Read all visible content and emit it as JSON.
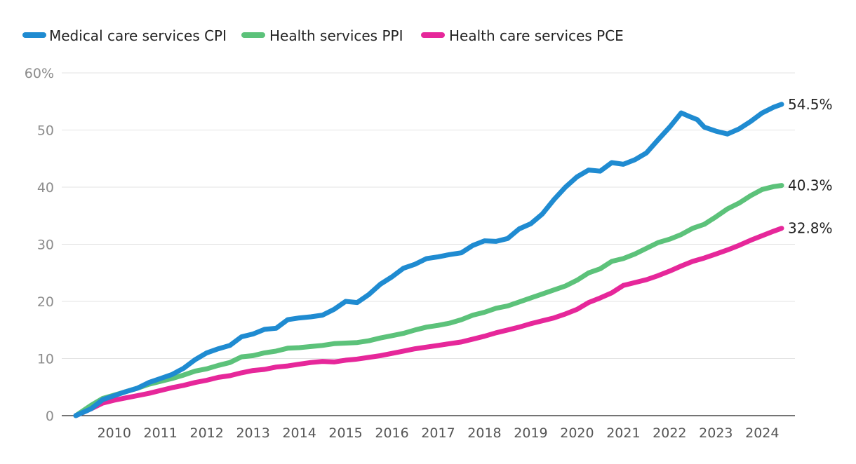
{
  "chart_data": {
    "type": "line",
    "title": "",
    "xlabel": "",
    "ylabel": "",
    "ylim": [
      0,
      60
    ],
    "xlim": [
      2009.42,
      2024.67
    ],
    "yticks": [
      {
        "value": 0,
        "label": "0"
      },
      {
        "value": 10,
        "label": "10"
      },
      {
        "value": 20,
        "label": "20"
      },
      {
        "value": 30,
        "label": "30"
      },
      {
        "value": 40,
        "label": "40"
      },
      {
        "value": 50,
        "label": "50"
      },
      {
        "value": 60,
        "label": "60%"
      }
    ],
    "xticks": [
      {
        "value": 2010,
        "label": "2010"
      },
      {
        "value": 2011,
        "label": "2011"
      },
      {
        "value": 2012,
        "label": "2012"
      },
      {
        "value": 2013,
        "label": "2013"
      },
      {
        "value": 2014,
        "label": "2014"
      },
      {
        "value": 2015,
        "label": "2015"
      },
      {
        "value": 2016,
        "label": "2016"
      },
      {
        "value": 2017,
        "label": "2017"
      },
      {
        "value": 2018,
        "label": "2018"
      },
      {
        "value": 2019,
        "label": "2019"
      },
      {
        "value": 2020,
        "label": "2020"
      },
      {
        "value": 2021,
        "label": "2021"
      },
      {
        "value": 2022,
        "label": "2022"
      },
      {
        "value": 2023,
        "label": "2023"
      },
      {
        "value": 2024,
        "label": "2024"
      }
    ],
    "grid": true,
    "legend_position": "top-left",
    "series": [
      {
        "name": "Medical care services CPI",
        "color": "#1f8bd1",
        "end_label": "54.5%",
        "x": [
          2009.42,
          2009.75,
          2010.0,
          2010.25,
          2010.5,
          2010.75,
          2011.0,
          2011.25,
          2011.5,
          2011.75,
          2012.0,
          2012.25,
          2012.5,
          2012.75,
          2013.0,
          2013.25,
          2013.5,
          2013.75,
          2014.0,
          2014.25,
          2014.5,
          2014.75,
          2015.0,
          2015.25,
          2015.5,
          2015.75,
          2016.0,
          2016.25,
          2016.5,
          2016.75,
          2017.0,
          2017.25,
          2017.5,
          2017.75,
          2018.0,
          2018.25,
          2018.5,
          2018.75,
          2019.0,
          2019.25,
          2019.5,
          2019.75,
          2020.0,
          2020.25,
          2020.5,
          2020.75,
          2021.0,
          2021.25,
          2021.5,
          2021.75,
          2022.0,
          2022.25,
          2022.5,
          2022.7,
          2022.85,
          2023.0,
          2023.25,
          2023.5,
          2023.75,
          2024.0,
          2024.25,
          2024.5,
          2024.67
        ],
        "values": [
          0,
          1.2,
          2.8,
          3.5,
          4.2,
          4.8,
          5.8,
          6.5,
          7.2,
          8.3,
          9.8,
          11.0,
          11.7,
          12.3,
          13.8,
          14.3,
          15.1,
          15.3,
          16.8,
          17.1,
          17.3,
          17.6,
          18.6,
          20.0,
          19.8,
          21.2,
          23.0,
          24.3,
          25.8,
          26.5,
          27.5,
          27.8,
          28.2,
          28.5,
          29.8,
          30.6,
          30.5,
          31.0,
          32.7,
          33.6,
          35.3,
          37.8,
          40.0,
          41.8,
          43.0,
          42.8,
          44.3,
          44.0,
          44.8,
          46.0,
          48.3,
          50.5,
          53.0,
          52.3,
          51.8,
          50.5,
          49.8,
          49.3,
          50.2,
          51.5,
          53.0,
          54.0,
          54.5
        ]
      },
      {
        "name": "Health services PPI",
        "color": "#5cc27a",
        "end_label": "40.3%",
        "x": [
          2009.42,
          2009.75,
          2010.0,
          2010.25,
          2010.5,
          2010.75,
          2011.0,
          2011.25,
          2011.5,
          2011.75,
          2012.0,
          2012.25,
          2012.5,
          2012.75,
          2013.0,
          2013.25,
          2013.5,
          2013.75,
          2014.0,
          2014.25,
          2014.5,
          2014.75,
          2015.0,
          2015.25,
          2015.5,
          2015.75,
          2016.0,
          2016.25,
          2016.5,
          2016.75,
          2017.0,
          2017.25,
          2017.5,
          2017.75,
          2018.0,
          2018.25,
          2018.5,
          2018.75,
          2019.0,
          2019.25,
          2019.5,
          2019.75,
          2020.0,
          2020.25,
          2020.5,
          2020.75,
          2021.0,
          2021.25,
          2021.5,
          2021.75,
          2022.0,
          2022.25,
          2022.5,
          2022.75,
          2023.0,
          2023.25,
          2023.5,
          2023.75,
          2024.0,
          2024.25,
          2024.5,
          2024.67
        ],
        "values": [
          0,
          1.8,
          3.0,
          3.6,
          4.2,
          4.8,
          5.5,
          6.0,
          6.5,
          7.1,
          7.8,
          8.2,
          8.8,
          9.3,
          10.3,
          10.5,
          11.0,
          11.3,
          11.8,
          11.9,
          12.1,
          12.3,
          12.6,
          12.7,
          12.8,
          13.1,
          13.6,
          14.0,
          14.4,
          15.0,
          15.5,
          15.8,
          16.2,
          16.8,
          17.6,
          18.1,
          18.8,
          19.2,
          19.9,
          20.6,
          21.3,
          22.0,
          22.7,
          23.7,
          25.0,
          25.7,
          27.0,
          27.5,
          28.3,
          29.3,
          30.3,
          30.9,
          31.7,
          32.8,
          33.5,
          34.8,
          36.2,
          37.2,
          38.5,
          39.6,
          40.1,
          40.3
        ]
      },
      {
        "name": "Health care services PCE",
        "color": "#e6279a",
        "end_label": "32.8%",
        "x": [
          2009.42,
          2009.75,
          2010.0,
          2010.25,
          2010.5,
          2010.75,
          2011.0,
          2011.25,
          2011.5,
          2011.75,
          2012.0,
          2012.25,
          2012.5,
          2012.75,
          2013.0,
          2013.25,
          2013.5,
          2013.75,
          2014.0,
          2014.25,
          2014.5,
          2014.75,
          2015.0,
          2015.25,
          2015.5,
          2015.75,
          2016.0,
          2016.25,
          2016.5,
          2016.75,
          2017.0,
          2017.25,
          2017.5,
          2017.75,
          2018.0,
          2018.25,
          2018.5,
          2018.75,
          2019.0,
          2019.25,
          2019.5,
          2019.75,
          2020.0,
          2020.25,
          2020.5,
          2020.75,
          2021.0,
          2021.25,
          2021.5,
          2021.75,
          2022.0,
          2022.25,
          2022.5,
          2022.75,
          2023.0,
          2023.25,
          2023.5,
          2023.75,
          2024.0,
          2024.25,
          2024.5,
          2024.67
        ],
        "values": [
          0,
          1.2,
          2.2,
          2.7,
          3.1,
          3.5,
          3.9,
          4.4,
          4.9,
          5.3,
          5.8,
          6.2,
          6.7,
          7.0,
          7.5,
          7.9,
          8.1,
          8.5,
          8.7,
          9.0,
          9.3,
          9.5,
          9.4,
          9.7,
          9.9,
          10.2,
          10.5,
          10.9,
          11.3,
          11.7,
          12.0,
          12.3,
          12.6,
          12.9,
          13.4,
          13.9,
          14.5,
          15.0,
          15.5,
          16.1,
          16.6,
          17.1,
          17.8,
          18.6,
          19.8,
          20.6,
          21.5,
          22.8,
          23.3,
          23.8,
          24.5,
          25.3,
          26.2,
          27.0,
          27.6,
          28.3,
          29.0,
          29.8,
          30.7,
          31.5,
          32.3,
          32.8
        ]
      }
    ]
  }
}
